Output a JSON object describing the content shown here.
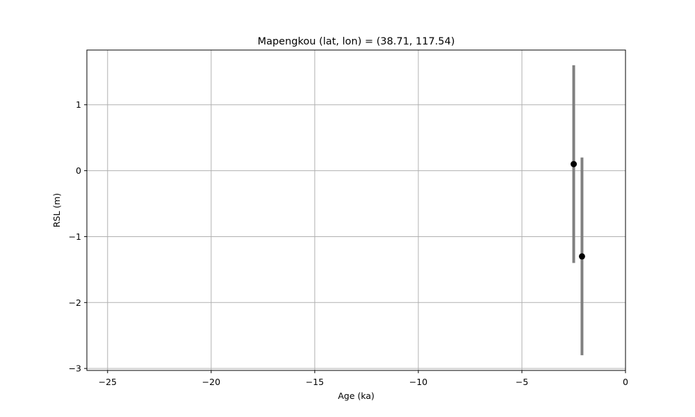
{
  "chart_data": {
    "type": "scatter",
    "title": "Mapengkou (lat, lon) = (38.71, 117.54)",
    "xlabel": "Age (ka)",
    "ylabel": "RSL (m)",
    "xlim": [
      -26,
      0
    ],
    "ylim": [
      -3.03,
      1.83
    ],
    "xticks": [
      -25,
      -20,
      -15,
      -10,
      -5,
      0
    ],
    "xtick_labels": [
      "−25",
      "−20",
      "−15",
      "−10",
      "−5",
      "0"
    ],
    "yticks": [
      -3,
      -2,
      -1,
      0,
      1
    ],
    "ytick_labels": [
      "−3",
      "−2",
      "−1",
      "0",
      "1"
    ],
    "grid": true,
    "colors": {
      "point": "#000000",
      "errorbar": "#808080",
      "grid": "#b0b0b0"
    },
    "points": [
      {
        "x": -2.5,
        "y": 0.1,
        "ymin": -1.4,
        "ymax": 1.6
      },
      {
        "x": -2.1,
        "y": -1.3,
        "ymin": -2.8,
        "ymax": 0.2
      }
    ]
  }
}
